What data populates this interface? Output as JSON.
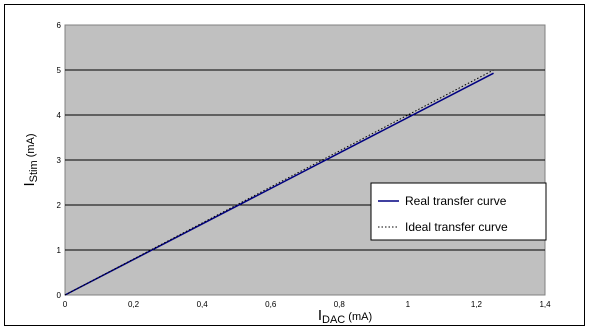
{
  "chart_data": {
    "type": "line",
    "xlabel": {
      "main": "I",
      "sub": "DAC",
      "unit": " (mA)"
    },
    "ylabel": {
      "main": "I",
      "sub": "Stim",
      "unit": " (mA)"
    },
    "xlim": [
      0,
      1.4
    ],
    "ylim": [
      0,
      6
    ],
    "xticks": [
      "0",
      "0,2",
      "0,4",
      "0,6",
      "0,8",
      "1",
      "1,2",
      "1,4"
    ],
    "yticks": [
      "0",
      "1",
      "2",
      "3",
      "4",
      "5",
      "6"
    ],
    "xtick_values": [
      0,
      0.2,
      0.4,
      0.6,
      0.8,
      1.0,
      1.2,
      1.4
    ],
    "ytick_values": [
      0,
      1,
      2,
      3,
      4,
      5,
      6
    ],
    "grid": "horizontal",
    "plot_background": "#c0c0c0",
    "legend_position": "right",
    "series": [
      {
        "name": "Real transfer curve",
        "color": "#000080",
        "style": "solid",
        "x": [
          0,
          1.25
        ],
        "y": [
          0,
          4.93
        ]
      },
      {
        "name": "Ideal transfer curve",
        "color": "#000000",
        "style": "dotted",
        "x": [
          0,
          1.25
        ],
        "y": [
          0,
          5.0
        ]
      }
    ]
  }
}
